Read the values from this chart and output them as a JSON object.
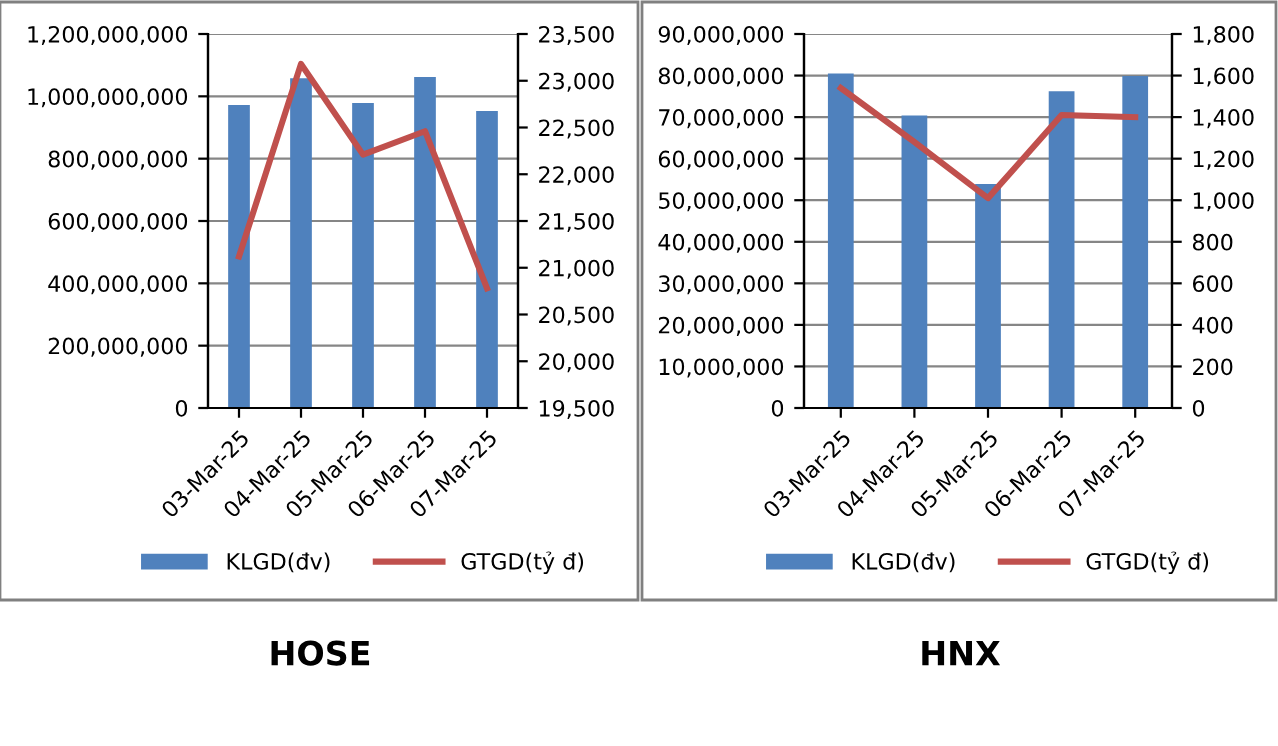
{
  "chart_data": [
    {
      "type": "bar",
      "title": "HOSE",
      "categories": [
        "03-Mar-25",
        "04-Mar-25",
        "05-Mar-25",
        "06-Mar-25",
        "07-Mar-25"
      ],
      "series": [
        {
          "name": "KLGD(đv)",
          "color": "#4f81bd",
          "values": [
            972000000,
            1058000000,
            979000000,
            1062000000,
            953000000
          ]
        },
        {
          "name": "GTGD(tỷ đ)",
          "type": "line",
          "axis": "y2",
          "color": "#c0504d",
          "values": [
            21120,
            23180,
            22210,
            22460,
            20780
          ]
        }
      ],
      "ylim": [
        0,
        1200000000
      ],
      "yticks": [
        {
          "value": 0,
          "label": "0"
        },
        {
          "value": 200000000,
          "label": "200,000,000"
        },
        {
          "value": 400000000,
          "label": "400,000,000"
        },
        {
          "value": 600000000,
          "label": "600,000,000"
        },
        {
          "value": 800000000,
          "label": "800,000,000"
        },
        {
          "value": 1000000000,
          "label": "1,000,000,000"
        },
        {
          "value": 1200000000,
          "label": "1,200,000,000"
        }
      ],
      "y2lim": [
        19500,
        23500
      ],
      "y2ticks": [
        {
          "value": 19500,
          "label": "19,500"
        },
        {
          "value": 20000,
          "label": "20,000"
        },
        {
          "value": 20500,
          "label": "20,500"
        },
        {
          "value": 21000,
          "label": "21,000"
        },
        {
          "value": 21500,
          "label": "21,500"
        },
        {
          "value": 22000,
          "label": "22,000"
        },
        {
          "value": 22500,
          "label": "22,500"
        },
        {
          "value": 23000,
          "label": "23,000"
        },
        {
          "value": 23500,
          "label": "23,500"
        }
      ],
      "grid": "y",
      "legend": "bottom",
      "marker": "none",
      "line_style": "solid"
    },
    {
      "type": "bar",
      "title": "HNX",
      "categories": [
        "03-Mar-25",
        "04-Mar-25",
        "05-Mar-25",
        "06-Mar-25",
        "07-Mar-25"
      ],
      "series": [
        {
          "name": "KLGD(đv)",
          "color": "#4f81bd",
          "values": [
            80500000,
            70400000,
            53900000,
            76200000,
            79900000
          ]
        },
        {
          "name": "GTGD(tỷ đ)",
          "type": "line",
          "axis": "y2",
          "color": "#c0504d",
          "values": [
            1540,
            1280,
            1010,
            1410,
            1400
          ]
        }
      ],
      "ylim": [
        0,
        90000000
      ],
      "yticks": [
        {
          "value": 0,
          "label": "0"
        },
        {
          "value": 10000000,
          "label": "10,000,000"
        },
        {
          "value": 20000000,
          "label": "20,000,000"
        },
        {
          "value": 30000000,
          "label": "30,000,000"
        },
        {
          "value": 40000000,
          "label": "40,000,000"
        },
        {
          "value": 50000000,
          "label": "50,000,000"
        },
        {
          "value": 60000000,
          "label": "60,000,000"
        },
        {
          "value": 70000000,
          "label": "70,000,000"
        },
        {
          "value": 80000000,
          "label": "80,000,000"
        },
        {
          "value": 90000000,
          "label": "90,000,000"
        }
      ],
      "y2lim": [
        0,
        1800
      ],
      "y2ticks": [
        {
          "value": 0,
          "label": "0"
        },
        {
          "value": 200,
          "label": "200"
        },
        {
          "value": 400,
          "label": "400"
        },
        {
          "value": 600,
          "label": "600"
        },
        {
          "value": 800,
          "label": "800"
        },
        {
          "value": 1000,
          "label": "1,000"
        },
        {
          "value": 1200,
          "label": "1,200"
        },
        {
          "value": 1400,
          "label": "1,400"
        },
        {
          "value": 1600,
          "label": "1,600"
        },
        {
          "value": 1800,
          "label": "1,800"
        }
      ],
      "grid": "y",
      "legend": "bottom",
      "marker": "none",
      "line_style": "solid"
    }
  ]
}
